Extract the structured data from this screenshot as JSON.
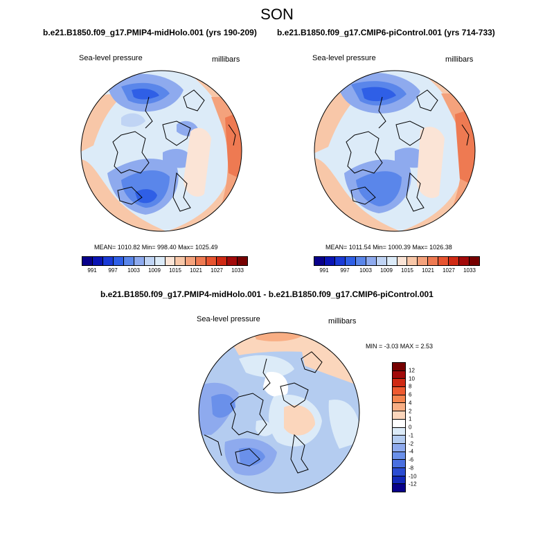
{
  "figure": {
    "title": "SON",
    "panel_left": {
      "subtitle": "b.e21.B1850.f09_g17.PMIP4-midHolo.001 (yrs 190-209)",
      "left_label": "Sea-level pressure",
      "right_label": "millibars",
      "stats": "MEAN= 1010.82  Min= 998.40  Max= 1025.49"
    },
    "panel_right": {
      "subtitle": "b.e21.B1850.f09_g17.CMIP6-piControl.001 (yrs 714-733)",
      "left_label": "Sea-level pressure",
      "right_label": "millibars",
      "stats": "MEAN= 1011.54  Min= 1000.39  Max= 1026.38"
    },
    "panel_diff": {
      "subtitle": "b.e21.B1850.f09_g17.PMIP4-midHolo.001 - b.e21.B1850.f09_g17.CMIP6-piControl.001",
      "left_label": "Sea-level pressure",
      "right_label": "millibars",
      "stats": "MIN =  -3.03 MAX =   2.53"
    },
    "abs_colorbar": {
      "colors": [
        "#08008a",
        "#0a14b4",
        "#1a3ad6",
        "#2f5fe6",
        "#5a86ea",
        "#8eaaee",
        "#c0d4f4",
        "#dcebf8",
        "#fbe4d6",
        "#f8c7a8",
        "#f4a27c",
        "#ee7a52",
        "#e75430",
        "#cf2a14",
        "#a20a0a",
        "#760000"
      ],
      "ticks": [
        "991",
        "997",
        "1003",
        "1009",
        "1015",
        "1021",
        "1027",
        "1033"
      ]
    },
    "diff_colorbar": {
      "colors": [
        "#760000",
        "#a20a0a",
        "#cf2a14",
        "#ee5a30",
        "#f4844e",
        "#f8ae84",
        "#fbd6bc",
        "#ffffff",
        "#dcebf8",
        "#b4ccf0",
        "#8eaaee",
        "#6a90ea",
        "#4a70e0",
        "#2a4cd2",
        "#1228b8",
        "#08008a"
      ],
      "labels": [
        "12",
        "10",
        "8",
        "6",
        "4",
        "2",
        "1",
        "0",
        "-1",
        "-2",
        "-4",
        "-6",
        "-8",
        "-10",
        "-12"
      ]
    }
  }
}
